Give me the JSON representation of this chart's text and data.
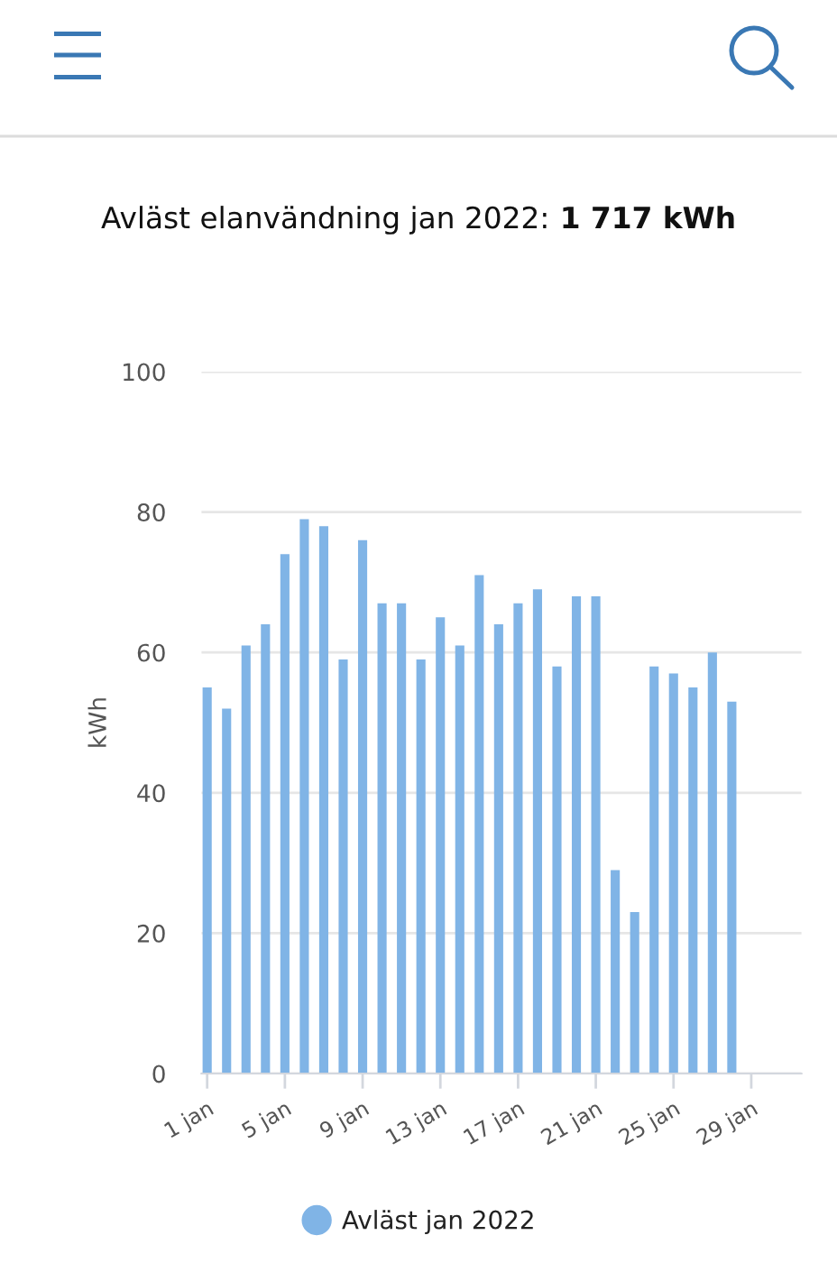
{
  "chart_data": {
    "type": "bar",
    "title": "Avläst elanvändning jan 2022: 1 717 kWh",
    "ylabel": "kWh",
    "x": [
      "2022-01-01",
      "2022-01-02",
      "2022-01-03",
      "2022-01-04",
      "2022-01-05",
      "2022-01-06",
      "2022-01-07",
      "2022-01-08",
      "2022-01-09",
      "2022-01-10",
      "2022-01-11",
      "2022-01-12",
      "2022-01-13",
      "2022-01-14",
      "2022-01-15",
      "2022-01-16",
      "2022-01-17",
      "2022-01-18",
      "2022-01-19",
      "2022-01-20",
      "2022-01-21",
      "2022-01-22",
      "2022-01-23",
      "2022-01-24",
      "2022-01-25",
      "2022-01-26",
      "2022-01-27",
      "2022-01-28"
    ],
    "series": [
      {
        "name": "Avläst jan 2022",
        "color": "#80b4e6",
        "values": [
          55,
          52,
          61,
          64,
          74,
          79,
          78,
          59,
          76,
          67,
          67,
          59,
          65,
          61,
          71,
          64,
          67,
          69,
          58,
          68,
          68,
          29,
          23,
          58,
          57,
          55,
          60,
          53
        ]
      }
    ],
    "xlim": [
      "2021-12-31T17:00",
      "2022-01-31T14:00"
    ],
    "xticks": [
      {
        "value": "2022-01-01",
        "label": "1 jan"
      },
      {
        "value": "2022-01-05",
        "label": "5 jan"
      },
      {
        "value": "2022-01-09",
        "label": "9 jan"
      },
      {
        "value": "2022-01-13",
        "label": "13 jan"
      },
      {
        "value": "2022-01-17",
        "label": "17 jan"
      },
      {
        "value": "2022-01-21",
        "label": "21 jan"
      },
      {
        "value": "2022-01-25",
        "label": "25 jan"
      },
      {
        "value": "2022-01-29",
        "label": "29 jan"
      }
    ],
    "ylim": [
      0,
      100
    ],
    "yticks": [
      0,
      20,
      40,
      60,
      80,
      100
    ],
    "grid": "y",
    "legend": "bottom"
  }
}
